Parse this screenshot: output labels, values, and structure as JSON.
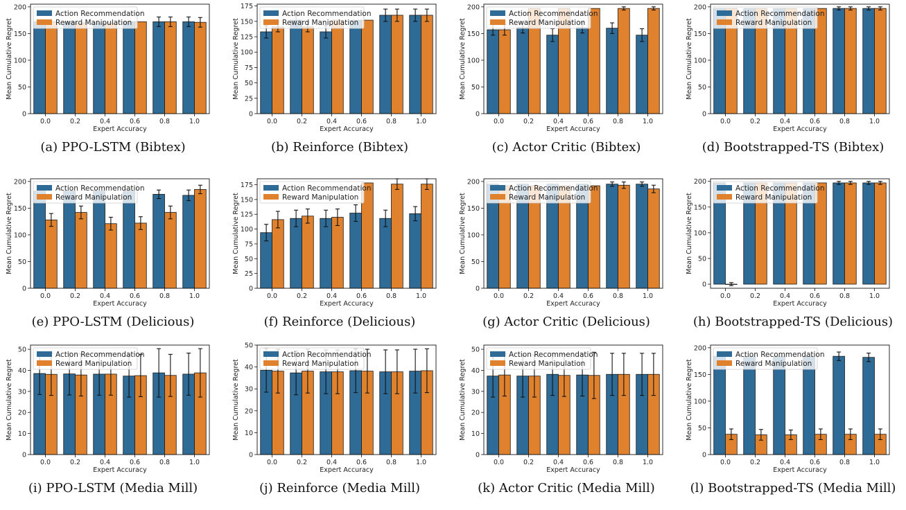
{
  "colors": {
    "action": "#2e6b96",
    "reward": "#e0812d",
    "edge": "#1a1a1a",
    "error": "#111111"
  },
  "chart_data": [
    {
      "type": "bar",
      "caption": "(a) PPO-LSTM (Bibtex)",
      "xlabel": "Expert Accuracy",
      "ylabel": "Mean Cumulative Regret",
      "ylim": [
        0,
        205
      ],
      "yticks": [
        0,
        50,
        100,
        150,
        200
      ],
      "categories": [
        "0.0",
        "0.2",
        "0.4",
        "0.6",
        "0.8",
        "1.0"
      ],
      "legend": "top-left",
      "series": [
        {
          "name": "Action Recommendation",
          "values": [
            172,
            172,
            170,
            172,
            172,
            172
          ],
          "errors": [
            0,
            0,
            0,
            0,
            9,
            9
          ]
        },
        {
          "name": "Reward Manipulation",
          "values": [
            172,
            170,
            170,
            172,
            172,
            171
          ],
          "errors": [
            0,
            0,
            0,
            0,
            9,
            9
          ]
        }
      ]
    },
    {
      "type": "bar",
      "caption": "(b) Reinforce (Bibtex)",
      "xlabel": "Expert Accuracy",
      "ylabel": "Mean Cumulative Regret",
      "ylim": [
        0,
        178
      ],
      "yticks": [
        0,
        25,
        50,
        75,
        100,
        125,
        150,
        175
      ],
      "categories": [
        "0.0",
        "0.2",
        "0.4",
        "0.6",
        "0.8",
        "1.0"
      ],
      "legend": "top-left",
      "series": [
        {
          "name": "Action Recommendation",
          "values": [
            133,
            152,
            133,
            152,
            160,
            160
          ],
          "errors": [
            10,
            10,
            10,
            0,
            10,
            10
          ]
        },
        {
          "name": "Reward Manipulation",
          "values": [
            141,
            141,
            152,
            152,
            160,
            160
          ],
          "errors": [
            8,
            8,
            0,
            0,
            10,
            10
          ]
        }
      ]
    },
    {
      "type": "bar",
      "caption": "(c) Actor Critic (Bibtex)",
      "xlabel": "Expert Accuracy",
      "ylabel": "Mean Cumulative Regret",
      "ylim": [
        0,
        205
      ],
      "yticks": [
        0,
        50,
        100,
        150,
        200
      ],
      "categories": [
        "0.0",
        "0.2",
        "0.4",
        "0.6",
        "0.8",
        "1.0"
      ],
      "legend": "top-left",
      "series": [
        {
          "name": "Action Recommendation",
          "values": [
            157,
            161,
            147,
            161,
            160,
            147
          ],
          "errors": [
            10,
            10,
            12,
            10,
            10,
            12
          ]
        },
        {
          "name": "Reward Manipulation",
          "values": [
            157,
            197,
            197,
            197,
            197,
            197
          ],
          "errors": [
            10,
            0,
            0,
            0,
            3,
            3
          ]
        }
      ]
    },
    {
      "type": "bar",
      "caption": "(d) Bootstrapped-TS (Bibtex)",
      "xlabel": "Expert Accuracy",
      "ylabel": "Mean Cumulative Regret",
      "ylim": [
        0,
        205
      ],
      "yticks": [
        0,
        50,
        100,
        150,
        200
      ],
      "categories": [
        "0.0",
        "0.2",
        "0.4",
        "0.6",
        "0.8",
        "1.0"
      ],
      "legend": "top-left",
      "series": [
        {
          "name": "Action Recommendation",
          "values": [
            197,
            197,
            197,
            197,
            197,
            197
          ],
          "errors": [
            0,
            0,
            0,
            0,
            3,
            3
          ]
        },
        {
          "name": "Reward Manipulation",
          "values": [
            197,
            197,
            197,
            197,
            197,
            197
          ],
          "errors": [
            0,
            0,
            0,
            0,
            3,
            3
          ]
        }
      ]
    },
    {
      "type": "bar",
      "caption": "(e) PPO-LSTM (Delicious)",
      "xlabel": "Expert Accuracy",
      "ylabel": "Mean Cumulative Regret",
      "ylim": [
        0,
        205
      ],
      "yticks": [
        0,
        50,
        100,
        150,
        200
      ],
      "categories": [
        "0.0",
        "0.2",
        "0.4",
        "0.6",
        "0.8",
        "1.0"
      ],
      "legend": "top-left",
      "series": [
        {
          "name": "Action Recommendation",
          "values": [
            182,
            182,
            182,
            182,
            176,
            174
          ],
          "errors": [
            0,
            0,
            0,
            0,
            8,
            10
          ]
        },
        {
          "name": "Reward Manipulation",
          "values": [
            128,
            142,
            121,
            122,
            142,
            185
          ],
          "errors": [
            12,
            12,
            12,
            12,
            12,
            8
          ]
        }
      ]
    },
    {
      "type": "bar",
      "caption": "(f) Reinforce (Delicious)",
      "xlabel": "Expert Accuracy",
      "ylabel": "Mean Cumulative Regret",
      "ylim": [
        0,
        185
      ],
      "yticks": [
        0,
        25,
        50,
        75,
        100,
        125,
        150,
        175
      ],
      "categories": [
        "0.0",
        "0.2",
        "0.4",
        "0.6",
        "0.8",
        "1.0"
      ],
      "legend": "top-left",
      "series": [
        {
          "name": "Action Recommendation",
          "values": [
            94,
            118,
            118,
            127,
            118,
            126
          ],
          "errors": [
            14,
            14,
            14,
            14,
            14,
            12
          ]
        },
        {
          "name": "Reward Manipulation",
          "values": [
            116,
            122,
            120,
            178,
            176,
            176
          ],
          "errors": [
            14,
            12,
            14,
            0,
            9,
            9
          ]
        }
      ]
    },
    {
      "type": "bar",
      "caption": "(g) Actor Critic (Delicious)",
      "xlabel": "Expert Accuracy",
      "ylabel": "Mean Cumulative Regret",
      "ylim": [
        0,
        205
      ],
      "yticks": [
        0,
        50,
        100,
        150,
        200
      ],
      "categories": [
        "0.0",
        "0.2",
        "0.4",
        "0.6",
        "0.8",
        "1.0"
      ],
      "legend": "top-left",
      "series": [
        {
          "name": "Action Recommendation",
          "values": [
            195,
            195,
            195,
            195,
            195,
            195
          ],
          "errors": [
            0,
            0,
            0,
            0,
            4,
            4
          ]
        },
        {
          "name": "Reward Manipulation",
          "values": [
            192,
            192,
            192,
            192,
            193,
            186
          ],
          "errors": [
            0,
            0,
            0,
            0,
            6,
            7
          ]
        }
      ]
    },
    {
      "type": "bar",
      "caption": "(h) Bootstrapped-TS (Delicious)",
      "xlabel": "Expert Accuracy",
      "ylabel": "Mean Cumulative Regret",
      "ylim": [
        -8,
        205
      ],
      "yticks": [
        0,
        50,
        100,
        150,
        200
      ],
      "categories": [
        "0.0",
        "0.2",
        "0.4",
        "0.6",
        "0.8",
        "1.0"
      ],
      "legend": "top-left",
      "series": [
        {
          "name": "Action Recommendation",
          "values": [
            197,
            197,
            197,
            197,
            197,
            197
          ],
          "errors": [
            0,
            0,
            0,
            0,
            3,
            3
          ]
        },
        {
          "name": "Reward Manipulation",
          "values": [
            0,
            197,
            197,
            197,
            197,
            197
          ],
          "errors": [
            3,
            0,
            0,
            0,
            3,
            3
          ]
        }
      ]
    },
    {
      "type": "bar",
      "caption": "(i) PPO-LSTM (Media Mill)",
      "xlabel": "Expert Accuracy",
      "ylabel": "Mean Cumulative Regret",
      "ylim": [
        0,
        52
      ],
      "yticks": [
        0,
        10,
        20,
        30,
        40,
        50
      ],
      "categories": [
        "0.0",
        "0.2",
        "0.4",
        "0.6",
        "0.8",
        "1.0"
      ],
      "legend": "top-left",
      "series": [
        {
          "name": "Action Recommendation",
          "values": [
            38.5,
            38.3,
            38.2,
            37.3,
            38.8,
            38.2
          ],
          "errors": [
            10,
            10,
            10,
            10,
            11.5,
            10
          ]
        },
        {
          "name": "Reward Manipulation",
          "values": [
            38.1,
            37.8,
            38.2,
            37.5,
            37.6,
            38.8
          ],
          "errors": [
            10,
            10,
            10,
            10,
            10,
            11.5
          ]
        }
      ]
    },
    {
      "type": "bar",
      "caption": "(j) Reinforce (Media Mill)",
      "xlabel": "Expert Accuracy",
      "ylabel": "Mean Cumulative Regret",
      "ylim": [
        0,
        50
      ],
      "yticks": [
        0,
        10,
        20,
        30,
        40,
        50
      ],
      "categories": [
        "0.0",
        "0.2",
        "0.4",
        "0.6",
        "0.8",
        "1.0"
      ],
      "legend": "top-left",
      "series": [
        {
          "name": "Action Recommendation",
          "values": [
            38.5,
            37.3,
            37.8,
            38.3,
            37.8,
            38.1
          ],
          "errors": [
            10,
            10,
            10,
            10,
            10,
            10
          ]
        },
        {
          "name": "Reward Manipulation",
          "values": [
            38.1,
            38.1,
            37.8,
            38.1,
            37.8,
            38.3
          ],
          "errors": [
            10,
            10,
            10,
            10,
            10,
            10
          ]
        }
      ]
    },
    {
      "type": "bar",
      "caption": "(k) Actor Critic (Media Mill)",
      "xlabel": "Expert Accuracy",
      "ylabel": "Mean Cumulative Regret",
      "ylim": [
        0,
        52
      ],
      "yticks": [
        0,
        10,
        20,
        30,
        40,
        50
      ],
      "categories": [
        "0.0",
        "0.2",
        "0.4",
        "0.6",
        "0.8",
        "1.0"
      ],
      "legend": "top-left",
      "series": [
        {
          "name": "Action Recommendation",
          "values": [
            37.3,
            37.3,
            38.1,
            37.8,
            38.1,
            38.1
          ],
          "errors": [
            10,
            10,
            10,
            10,
            10,
            10
          ]
        },
        {
          "name": "Reward Manipulation",
          "values": [
            37.8,
            37.3,
            37.6,
            37.6,
            38.1,
            38.1
          ],
          "errors": [
            10,
            10,
            10,
            11,
            10,
            10
          ]
        }
      ]
    },
    {
      "type": "bar",
      "caption": "(l) Bootstrapped-TS (Media Mill)",
      "xlabel": "Expert Accuracy",
      "ylabel": "Mean Cumulative Regret",
      "ylim": [
        0,
        205
      ],
      "yticks": [
        0,
        50,
        100,
        150,
        200
      ],
      "categories": [
        "0.0",
        "0.2",
        "0.4",
        "0.6",
        "0.8",
        "1.0"
      ],
      "legend": "top-left",
      "series": [
        {
          "name": "Action Recommendation",
          "values": [
            184,
            184,
            184,
            184,
            184,
            182
          ],
          "errors": [
            0,
            0,
            0,
            0,
            8,
            8
          ]
        },
        {
          "name": "Reward Manipulation",
          "values": [
            38,
            37,
            37,
            38,
            38,
            38
          ],
          "errors": [
            10,
            10,
            9,
            10,
            10,
            10
          ]
        }
      ]
    }
  ]
}
